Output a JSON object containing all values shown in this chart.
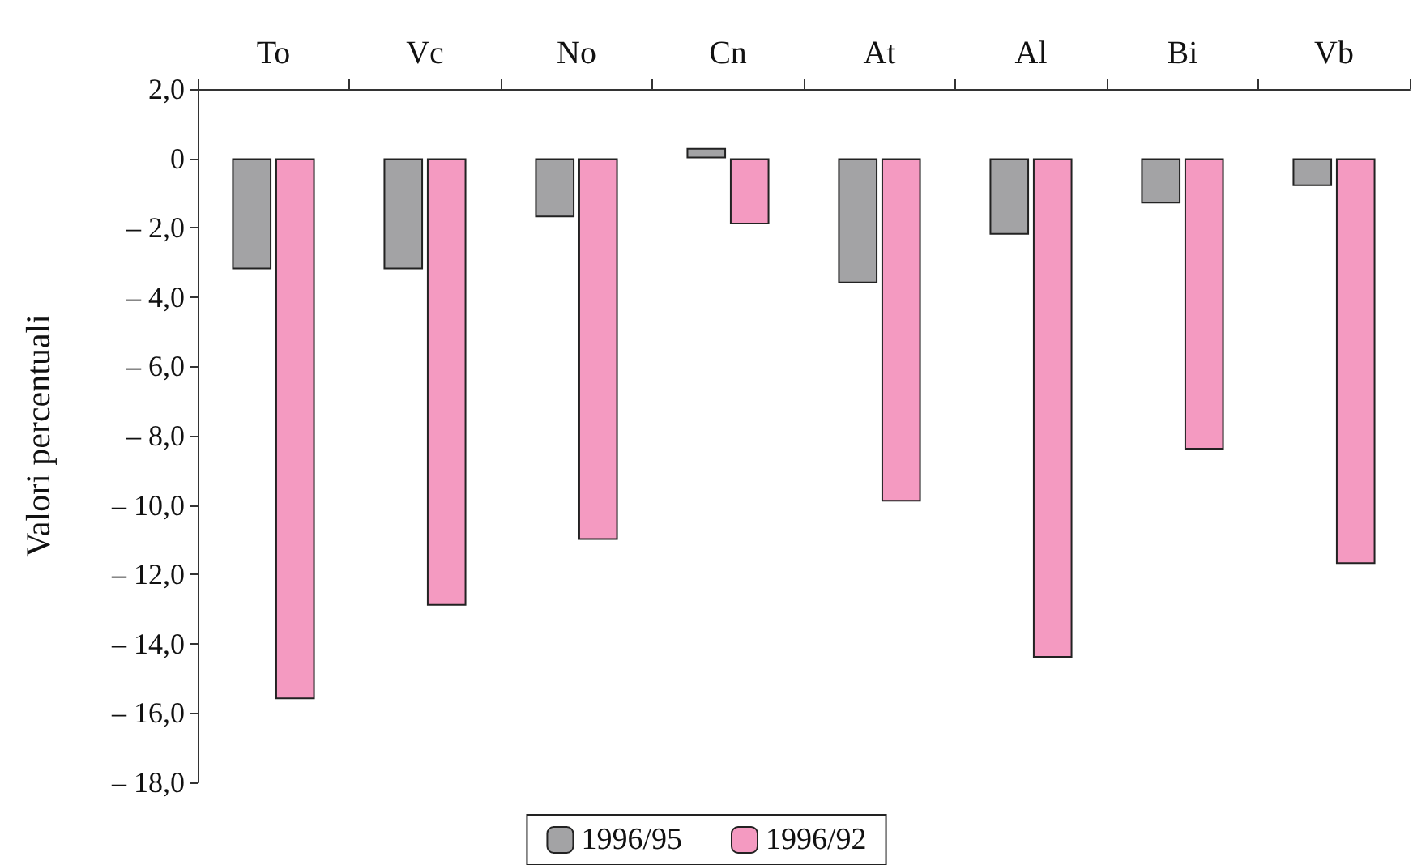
{
  "chart_data": {
    "type": "bar",
    "ylabel": "Valori percentuali",
    "categories": [
      "To",
      "Vc",
      "No",
      "Cn",
      "At",
      "Al",
      "Bi",
      "Vb"
    ],
    "series": [
      {
        "name": "1996/95",
        "color": "#a3a3a5",
        "values": [
          -3.2,
          -3.2,
          -1.7,
          0.3,
          -3.6,
          -2.2,
          -1.3,
          -0.8
        ]
      },
      {
        "name": "1996/92",
        "color": "#f49ac1",
        "values": [
          -15.6,
          -12.9,
          -11.0,
          -1.9,
          -9.9,
          -14.4,
          -8.4,
          -11.7
        ]
      }
    ],
    "ylim": [
      -18,
      2
    ],
    "yticks": [
      {
        "value": 2,
        "label": "2,0"
      },
      {
        "value": 0,
        "label": "0"
      },
      {
        "value": -2,
        "label": "– 2,0"
      },
      {
        "value": -4,
        "label": "– 4,0"
      },
      {
        "value": -6,
        "label": "– 6,0"
      },
      {
        "value": -8,
        "label": "– 8,0"
      },
      {
        "value": -10,
        "label": "– 10,0"
      },
      {
        "value": -12,
        "label": "– 12,0"
      },
      {
        "value": -14,
        "label": "– 14,0"
      },
      {
        "value": -16,
        "label": "– 16,0"
      },
      {
        "value": -18,
        "label": "– 18,0"
      }
    ],
    "grid": false,
    "legend": "bottom"
  }
}
